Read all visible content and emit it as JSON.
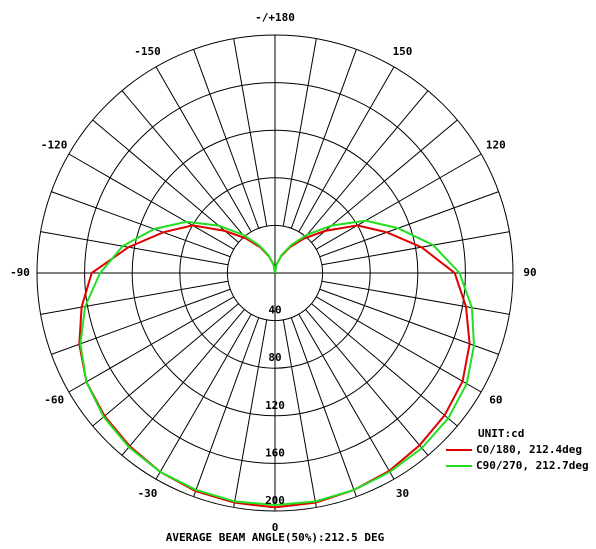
{
  "chart_data": {
    "type": "polar",
    "unit_label": "UNIT:cd",
    "footer": "AVERAGE BEAM ANGLE(50%):212.5 DEG",
    "x": [
      -180,
      -170,
      -160,
      -150,
      -140,
      -130,
      -120,
      -110,
      -100,
      -90,
      -80,
      -70,
      -60,
      -50,
      -40,
      -30,
      -20,
      -10,
      0,
      10,
      20,
      30,
      40,
      50,
      60,
      70,
      80,
      90,
      100,
      110,
      120,
      130,
      140,
      150,
      160,
      170,
      180
    ],
    "series": [
      {
        "name": "C0/180, 212.4deg",
        "color": "#e00000",
        "values": [
          0,
          7,
          15,
          25,
          38,
          55,
          80,
          100,
          125,
          154,
          165,
          175,
          183,
          187,
          190,
          193,
          195,
          196,
          197,
          196,
          194,
          192,
          189,
          186,
          182,
          174,
          163,
          151,
          125,
          100,
          80,
          55,
          38,
          25,
          15,
          7,
          0
        ]
      },
      {
        "name": "C90/270, 212.7deg",
        "color": "#20e020",
        "values": [
          0,
          7,
          16,
          27,
          42,
          62,
          86,
          108,
          130,
          147,
          162,
          174,
          183,
          188,
          191,
          193,
          194,
          195,
          195,
          195,
          194,
          193,
          192,
          190,
          186,
          178,
          168,
          155,
          135,
          110,
          88,
          62,
          42,
          27,
          16,
          7,
          0
        ]
      }
    ],
    "rlim": [
      0,
      200
    ],
    "rticks": [
      40,
      80,
      120,
      160,
      200
    ],
    "xticks": [
      0,
      30,
      60,
      90,
      120,
      150,
      {
        "value": 180,
        "label": "-/+180"
      },
      -150,
      -120,
      -90,
      -60,
      -30
    ]
  }
}
